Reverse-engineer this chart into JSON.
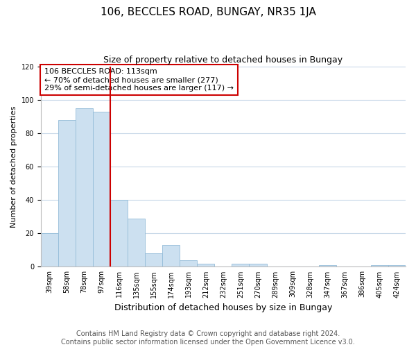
{
  "title": "106, BECCLES ROAD, BUNGAY, NR35 1JA",
  "subtitle": "Size of property relative to detached houses in Bungay",
  "xlabel": "Distribution of detached houses by size in Bungay",
  "ylabel": "Number of detached properties",
  "categories": [
    "39sqm",
    "58sqm",
    "78sqm",
    "97sqm",
    "116sqm",
    "135sqm",
    "155sqm",
    "174sqm",
    "193sqm",
    "212sqm",
    "232sqm",
    "251sqm",
    "270sqm",
    "289sqm",
    "309sqm",
    "328sqm",
    "347sqm",
    "367sqm",
    "386sqm",
    "405sqm",
    "424sqm"
  ],
  "values": [
    20,
    88,
    95,
    93,
    40,
    29,
    8,
    13,
    4,
    2,
    0,
    2,
    2,
    0,
    0,
    0,
    1,
    0,
    0,
    1,
    1
  ],
  "bar_color": "#cce0f0",
  "bar_edge_color": "#94bcd8",
  "reference_line_color": "#cc0000",
  "annotation_text": "106 BECCLES ROAD: 113sqm\n← 70% of detached houses are smaller (277)\n29% of semi-detached houses are larger (117) →",
  "annotation_box_edge_color": "#cc0000",
  "ylim": [
    0,
    120
  ],
  "yticks": [
    0,
    20,
    40,
    60,
    80,
    100,
    120
  ],
  "footer_line1": "Contains HM Land Registry data © Crown copyright and database right 2024.",
  "footer_line2": "Contains public sector information licensed under the Open Government Licence v3.0.",
  "bg_color": "#ffffff",
  "grid_color": "#c8d8e8",
  "title_fontsize": 11,
  "subtitle_fontsize": 9,
  "annotation_fontsize": 8,
  "axis_label_fontsize": 8,
  "tick_fontsize": 7,
  "xlabel_fontsize": 9,
  "footer_fontsize": 7
}
